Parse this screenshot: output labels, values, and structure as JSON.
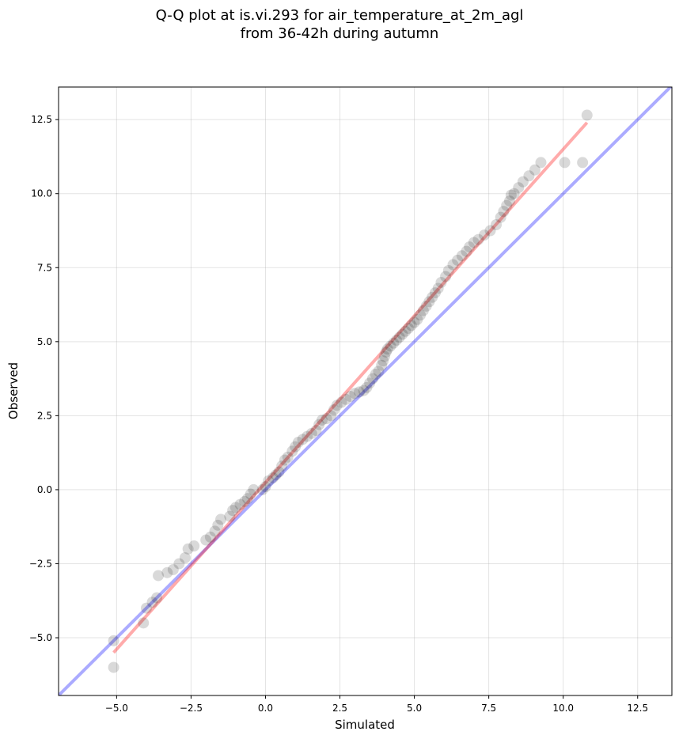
{
  "chart_data": {
    "type": "scatter",
    "title_line1": "Q-Q plot at is.vi.293 for air_temperature_at_2m_agl",
    "title_line2": "from 36-42h during autumn",
    "xlabel": "Simulated",
    "ylabel": "Observed",
    "xlim": [
      -6.95,
      13.65
    ],
    "ylim": [
      -6.95,
      13.6
    ],
    "xticks": [
      -5.0,
      -2.5,
      0.0,
      2.5,
      5.0,
      7.5,
      10.0,
      12.5
    ],
    "yticks": [
      -5.0,
      -2.5,
      0.0,
      2.5,
      5.0,
      7.5,
      10.0,
      12.5
    ],
    "xtick_labels": [
      "−5.0",
      "−2.5",
      "0.0",
      "2.5",
      "5.0",
      "7.5",
      "10.0",
      "12.5"
    ],
    "ytick_labels": [
      "−5.0",
      "−2.5",
      "0.0",
      "2.5",
      "5.0",
      "7.5",
      "10.0",
      "12.5"
    ],
    "grid": true,
    "identity_line": {
      "from": [
        -6.95,
        -6.95
      ],
      "to": [
        13.65,
        13.65
      ],
      "color": "#0000ff"
    },
    "fit_line": {
      "from": [
        -5.1,
        -5.5
      ],
      "to": [
        10.8,
        12.4
      ],
      "color": "#ff0000"
    },
    "point_color": "#000000",
    "points": [
      [
        -5.1,
        -6.0
      ],
      [
        -5.1,
        -5.1
      ],
      [
        -4.1,
        -4.5
      ],
      [
        -4.0,
        -4.0
      ],
      [
        -3.8,
        -3.8
      ],
      [
        -3.65,
        -3.65
      ],
      [
        -3.6,
        -2.9
      ],
      [
        -3.3,
        -2.8
      ],
      [
        -3.1,
        -2.7
      ],
      [
        -2.9,
        -2.5
      ],
      [
        -2.7,
        -2.3
      ],
      [
        -2.6,
        -2.0
      ],
      [
        -2.4,
        -1.9
      ],
      [
        -2.0,
        -1.7
      ],
      [
        -1.85,
        -1.6
      ],
      [
        -1.7,
        -1.4
      ],
      [
        -1.6,
        -1.2
      ],
      [
        -1.5,
        -1.0
      ],
      [
        -1.2,
        -0.9
      ],
      [
        -1.1,
        -0.7
      ],
      [
        -1.0,
        -0.6
      ],
      [
        -0.85,
        -0.5
      ],
      [
        -0.7,
        -0.4
      ],
      [
        -0.6,
        -0.3
      ],
      [
        -0.5,
        -0.15
      ],
      [
        -0.4,
        0.0
      ],
      [
        -0.1,
        0.0
      ],
      [
        0.0,
        0.1
      ],
      [
        0.1,
        0.3
      ],
      [
        0.25,
        0.4
      ],
      [
        0.35,
        0.5
      ],
      [
        0.45,
        0.6
      ],
      [
        0.55,
        0.8
      ],
      [
        0.65,
        1.0
      ],
      [
        0.75,
        1.1
      ],
      [
        0.9,
        1.3
      ],
      [
        1.0,
        1.45
      ],
      [
        1.1,
        1.6
      ],
      [
        1.25,
        1.7
      ],
      [
        1.4,
        1.8
      ],
      [
        1.55,
        1.9
      ],
      [
        1.7,
        2.0
      ],
      [
        1.8,
        2.2
      ],
      [
        1.9,
        2.35
      ],
      [
        2.05,
        2.4
      ],
      [
        2.2,
        2.5
      ],
      [
        2.3,
        2.7
      ],
      [
        2.4,
        2.85
      ],
      [
        2.55,
        2.95
      ],
      [
        2.7,
        3.05
      ],
      [
        2.85,
        3.15
      ],
      [
        3.0,
        3.25
      ],
      [
        3.15,
        3.3
      ],
      [
        3.3,
        3.35
      ],
      [
        3.4,
        3.45
      ],
      [
        3.5,
        3.6
      ],
      [
        3.6,
        3.75
      ],
      [
        3.7,
        3.9
      ],
      [
        3.8,
        4.0
      ],
      [
        3.9,
        4.2
      ],
      [
        3.95,
        4.35
      ],
      [
        4.0,
        4.5
      ],
      [
        4.05,
        4.65
      ],
      [
        4.1,
        4.75
      ],
      [
        4.2,
        4.85
      ],
      [
        4.3,
        4.95
      ],
      [
        4.4,
        5.05
      ],
      [
        4.5,
        5.15
      ],
      [
        4.6,
        5.25
      ],
      [
        4.7,
        5.35
      ],
      [
        4.8,
        5.45
      ],
      [
        4.9,
        5.55
      ],
      [
        5.0,
        5.65
      ],
      [
        5.1,
        5.75
      ],
      [
        5.2,
        5.9
      ],
      [
        5.3,
        6.05
      ],
      [
        5.4,
        6.2
      ],
      [
        5.5,
        6.35
      ],
      [
        5.6,
        6.5
      ],
      [
        5.7,
        6.65
      ],
      [
        5.8,
        6.8
      ],
      [
        5.9,
        7.0
      ],
      [
        6.05,
        7.2
      ],
      [
        6.15,
        7.4
      ],
      [
        6.3,
        7.6
      ],
      [
        6.45,
        7.75
      ],
      [
        6.6,
        7.9
      ],
      [
        6.75,
        8.05
      ],
      [
        6.85,
        8.2
      ],
      [
        7.0,
        8.35
      ],
      [
        7.15,
        8.45
      ],
      [
        7.35,
        8.6
      ],
      [
        7.55,
        8.75
      ],
      [
        7.75,
        8.95
      ],
      [
        7.9,
        9.2
      ],
      [
        8.0,
        9.4
      ],
      [
        8.1,
        9.6
      ],
      [
        8.2,
        9.75
      ],
      [
        8.25,
        9.95
      ],
      [
        8.35,
        10.0
      ],
      [
        8.5,
        10.2
      ],
      [
        8.65,
        10.4
      ],
      [
        8.85,
        10.6
      ],
      [
        9.05,
        10.8
      ],
      [
        9.25,
        11.05
      ],
      [
        10.05,
        11.05
      ],
      [
        10.65,
        11.05
      ],
      [
        10.8,
        12.65
      ]
    ]
  }
}
